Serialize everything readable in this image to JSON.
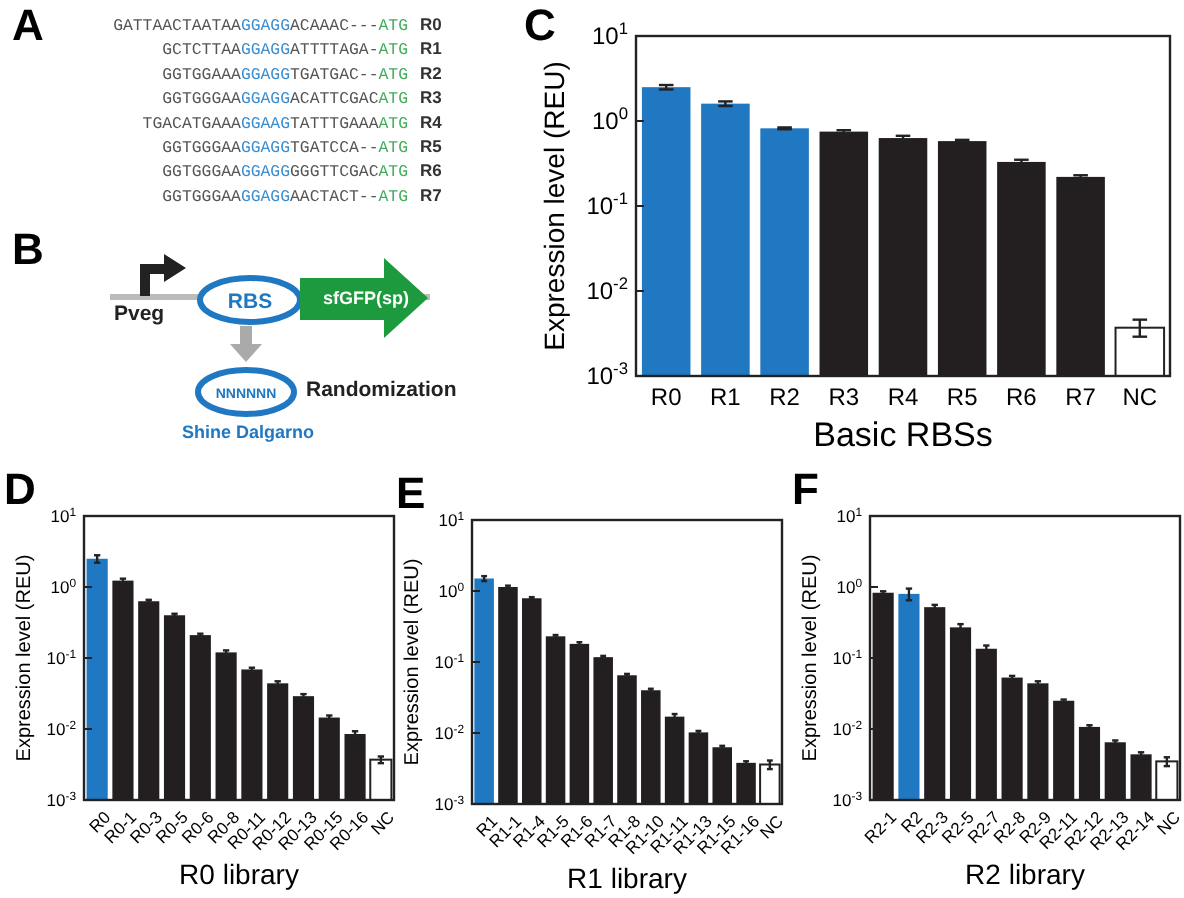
{
  "chart_data": [
    {
      "type": "other",
      "title": "A",
      "annotations": [
        "GATTAACTAATAA",
        "GGAGG",
        "ACAAAC---",
        "ATG",
        "R0",
        "GCTCTTAA",
        "GGAGG",
        "ATTTTAGA-",
        "ATG",
        "R1",
        "GGTGGAAA",
        "GGAGG",
        "TGATGAC--",
        "ATG",
        "R2",
        "GGTGGGAA",
        "GGAGG",
        "ACATTCGAC",
        "ATG",
        "R3",
        "TGACATGAAA",
        "GGAAG",
        "TATTTGAAA",
        "ATG",
        "R4",
        "GGTGGGAA",
        "GGAGG",
        "TGATCCA--",
        "ATG",
        "R5",
        "GGTGGGAA",
        "GGAGG",
        "GGGTTCGAC",
        "ATG",
        "R6",
        "GGTGGGAA",
        "GGAGG",
        "AACTACT--",
        "ATG",
        "R7"
      ]
    },
    {
      "type": "other",
      "title": "B",
      "annotations": [
        "Pveg",
        "RBS",
        "sfGFP(sp)",
        "NNNNNN",
        "Randomization",
        "Shine Dalgarno"
      ]
    },
    {
      "type": "bar",
      "title": "C",
      "xlabel": "Basic RBSs",
      "ylabel": "Expression level (REU)",
      "log": true,
      "grid": false,
      "categories": [
        "R0",
        "R1",
        "R2",
        "R3",
        "R4",
        "R5",
        "R6",
        "R7",
        "NC"
      ],
      "values": [
        2.5,
        1.6,
        0.82,
        0.75,
        0.63,
        0.58,
        0.33,
        0.22,
        0.0037
      ],
      "errors": [
        0.15,
        0.1,
        0.02,
        0.03,
        0.04,
        0.02,
        0.02,
        0.01,
        [
          0.0029,
          0.0046
        ]
      ],
      "colors": [
        "#1f78c1",
        "#1f78c1",
        "#1f78c1",
        "#231f20",
        "#231f20",
        "#231f20",
        "#231f20",
        "#231f20",
        "#ffffff"
      ],
      "ylim": [
        0.001,
        10
      ],
      "yticks": [
        {
          "value": 0.001,
          "label": "10$^{-3}$"
        },
        {
          "value": 0.01,
          "label": "10$^{-2}$"
        },
        {
          "value": 0.1,
          "label": "10$^{-1}$"
        },
        {
          "value": 1,
          "label": "10$^{0}$"
        },
        {
          "value": 10,
          "label": "10$^{1}$"
        }
      ]
    },
    {
      "type": "bar",
      "title": "D",
      "xlabel": "R0 library",
      "ylabel": "Expression level (REU)",
      "log": true,
      "grid": false,
      "categories": [
        "R0",
        "R0-1",
        "R0-3",
        "R0-5",
        "R0-6",
        "R0-8",
        "R0-11",
        "R0-12",
        "R0-13",
        "R0-15",
        "R0-16",
        "NC"
      ],
      "values": [
        2.5,
        1.23,
        0.63,
        0.4,
        0.21,
        0.12,
        0.069,
        0.044,
        0.029,
        0.0145,
        0.0085,
        0.0037
      ],
      "errors": [
        0.3,
        0.08,
        0.03,
        0.02,
        0.01,
        0.008,
        0.004,
        0.003,
        0.002,
        0.001,
        0.0008,
        0.0004
      ],
      "colors": [
        "#1f78c1",
        "#231f20",
        "#231f20",
        "#231f20",
        "#231f20",
        "#231f20",
        "#231f20",
        "#231f20",
        "#231f20",
        "#231f20",
        "#231f20",
        "#ffffff"
      ],
      "ylim": [
        0.001,
        10
      ],
      "yticks": [
        {
          "value": 0.001,
          "label": "10$^{-3}$"
        },
        {
          "value": 0.01,
          "label": "10$^{-2}$"
        },
        {
          "value": 0.1,
          "label": "10$^{-1}$"
        },
        {
          "value": 1,
          "label": "10$^{0}$"
        },
        {
          "value": 10,
          "label": "10$^{1}$"
        }
      ]
    },
    {
      "type": "bar",
      "title": "E",
      "xlabel": "R1 library",
      "ylabel": "Expression level (REU)",
      "log": true,
      "grid": false,
      "categories": [
        "R1",
        "R1-1",
        "R1-4",
        "R1-5",
        "R1-6",
        "R1-7",
        "R1-8",
        "R1-10",
        "R1-11",
        "R1-13",
        "R1-15",
        "R1-16",
        "NC"
      ],
      "values": [
        1.5,
        1.14,
        0.79,
        0.23,
        0.18,
        0.117,
        0.065,
        0.04,
        0.017,
        0.0102,
        0.0063,
        0.0038,
        0.0036
      ],
      "errors": [
        0.12,
        0.05,
        0.03,
        0.01,
        0.01,
        0.005,
        0.003,
        0.002,
        0.0015,
        0.0005,
        0.0003,
        0.0002,
        0.0005
      ],
      "colors": [
        "#1f78c1",
        "#231f20",
        "#231f20",
        "#231f20",
        "#231f20",
        "#231f20",
        "#231f20",
        "#231f20",
        "#231f20",
        "#231f20",
        "#231f20",
        "#231f20",
        "#ffffff"
      ],
      "ylim": [
        0.001,
        10
      ],
      "yticks": [
        {
          "value": 0.001,
          "label": "10$^{-3}$"
        },
        {
          "value": 0.01,
          "label": "10$^{-2}$"
        },
        {
          "value": 0.1,
          "label": "10$^{-1}$"
        },
        {
          "value": 1,
          "label": "10$^{0}$"
        },
        {
          "value": 10,
          "label": "10$^{1}$"
        }
      ]
    },
    {
      "type": "bar",
      "title": "F",
      "xlabel": "R2 library",
      "ylabel": "Expression level (REU)",
      "log": true,
      "grid": false,
      "categories": [
        "R2-1",
        "R2",
        "R2-3",
        "R2-5",
        "R2-7",
        "R2-8",
        "R2-9",
        "R2-11",
        "R2-12",
        "R2-13",
        "R2-14",
        "NC"
      ],
      "values": [
        0.83,
        0.8,
        0.52,
        0.27,
        0.135,
        0.053,
        0.044,
        0.025,
        0.0107,
        0.0065,
        0.0044,
        0.0035
      ],
      "errors": [
        0.04,
        0.15,
        0.04,
        0.03,
        0.015,
        0.003,
        0.003,
        0.001,
        0.0006,
        0.0004,
        0.0003,
        0.0005
      ],
      "colors": [
        "#231f20",
        "#1f78c1",
        "#231f20",
        "#231f20",
        "#231f20",
        "#231f20",
        "#231f20",
        "#231f20",
        "#231f20",
        "#231f20",
        "#231f20",
        "#ffffff"
      ],
      "ylim": [
        0.001,
        10
      ],
      "yticks": [
        {
          "value": 0.001,
          "label": "10$^{-3}$"
        },
        {
          "value": 0.01,
          "label": "10$^{-2}$"
        },
        {
          "value": 0.1,
          "label": "10$^{-1}$"
        },
        {
          "value": 1,
          "label": "10$^{0}$"
        },
        {
          "value": 10,
          "label": "10$^{1}$"
        }
      ]
    }
  ]
}
